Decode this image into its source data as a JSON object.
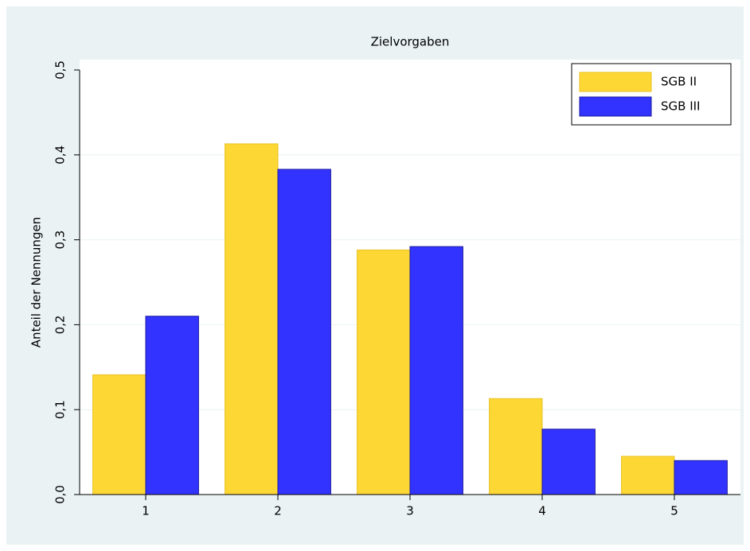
{
  "chart_data": {
    "type": "bar",
    "title": "Zielvorgaben",
    "y_label": "Anteil der Nennungen",
    "categories": [
      "1",
      "2",
      "3",
      "4",
      "5"
    ],
    "series": [
      {
        "name": "SGB II",
        "color": "#fdd835",
        "values": [
          0.141,
          0.413,
          0.288,
          0.113,
          0.045
        ]
      },
      {
        "name": "SGB III",
        "color": "#3333ff",
        "values": [
          0.21,
          0.383,
          0.292,
          0.077,
          0.04
        ]
      }
    ],
    "ylim": [
      0,
      0.5
    ],
    "yticks": [
      {
        "value": 0,
        "label": "0,0"
      },
      {
        "value": 0.1,
        "label": "0,1"
      },
      {
        "value": 0.2,
        "label": "0,2"
      },
      {
        "value": 0.3,
        "label": "0,3"
      },
      {
        "value": 0.4,
        "label": "0,4"
      },
      {
        "value": 0.5,
        "label": "0,5"
      }
    ],
    "grid": true,
    "legend": "upper right"
  }
}
